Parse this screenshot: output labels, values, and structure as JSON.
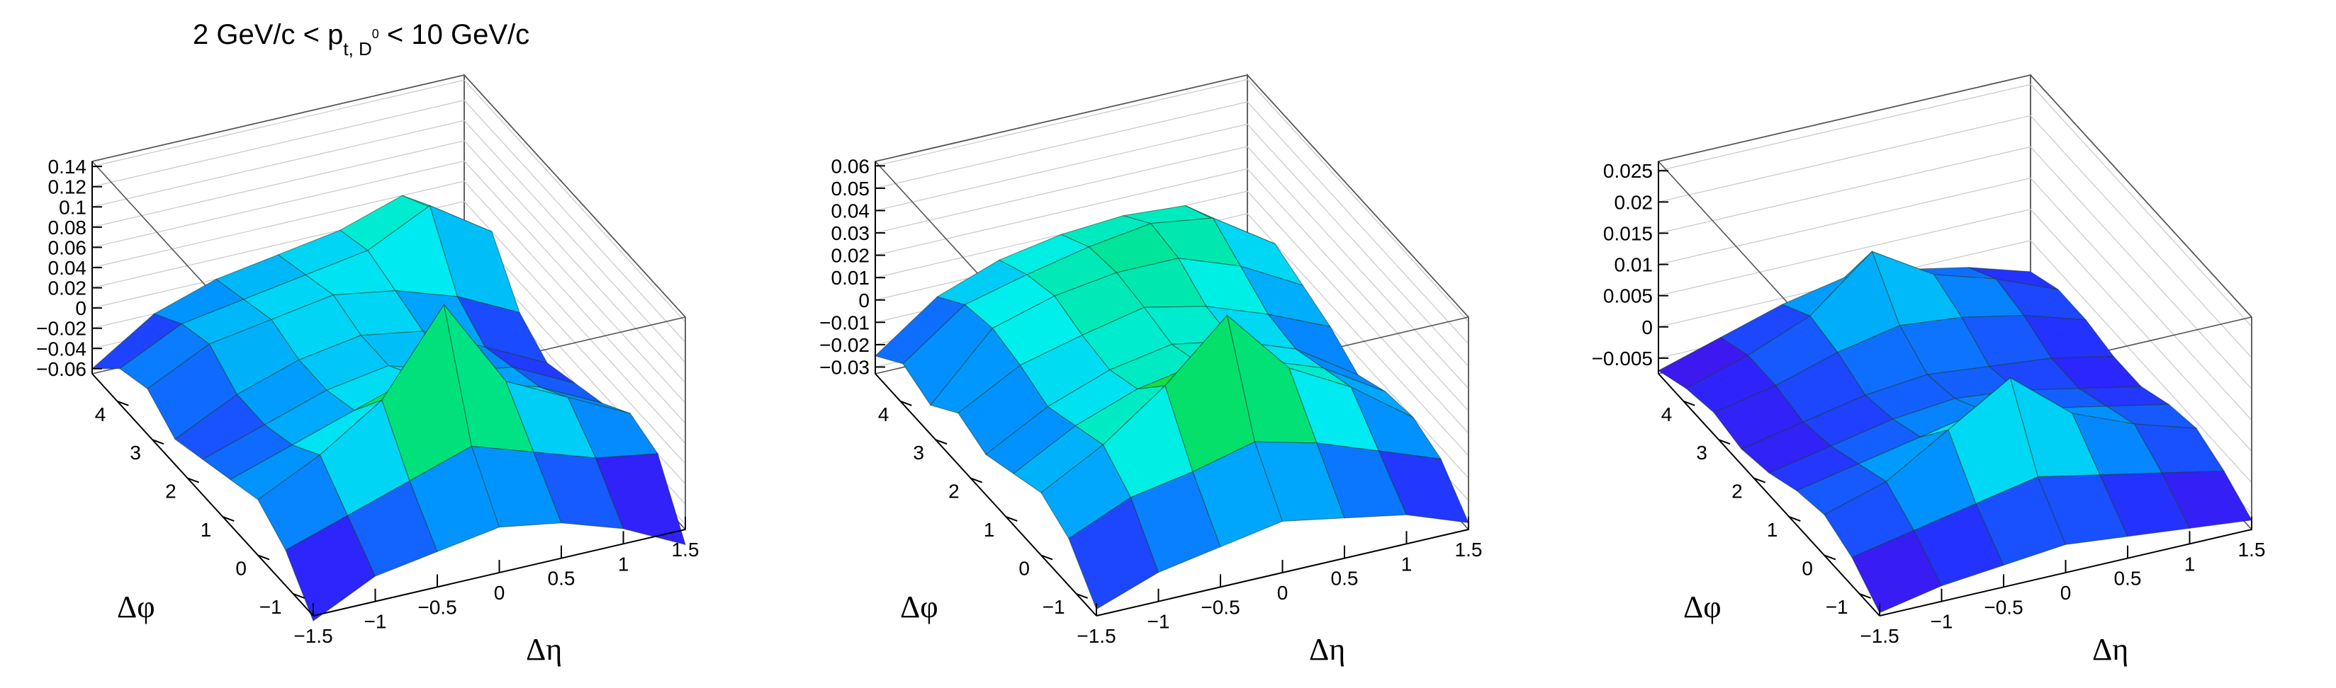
{
  "title": {
    "prefix": "2 GeV/c < p",
    "sub": "t, D",
    "sup": "0",
    "suffix": " < 10 GeV/c"
  },
  "chart_data": [
    {
      "type": "surface3d",
      "xlabel": "Δη",
      "ylabel": "Δφ",
      "x_ticks": [
        "−1.5",
        "−1",
        "−0.5",
        "0",
        "0.5",
        "1",
        "1.5"
      ],
      "x_tick_values": [
        -1.5,
        -1,
        -0.5,
        0,
        0.5,
        1,
        1.5
      ],
      "y_ticks": [
        "−1",
        "0",
        "1",
        "2",
        "3",
        "4"
      ],
      "y_tick_values": [
        -1,
        0,
        1,
        2,
        3,
        4
      ],
      "z_ticks": [
        "−0.06",
        "−0.04",
        "−0.02",
        "0",
        "0.02",
        "0.04",
        "0.06",
        "0.08",
        "0.1",
        "0.12",
        "0.14"
      ],
      "z_tick_values": [
        -0.06,
        -0.04,
        -0.02,
        0,
        0.02,
        0.04,
        0.06,
        0.08,
        0.1,
        0.12,
        0.14
      ],
      "zlim": [
        -0.065,
        0.145
      ],
      "eta_bins": [
        -1.5,
        -1,
        -0.5,
        0,
        0.5,
        1,
        1.5
      ],
      "phi_bins": [
        -1.571,
        -0.785,
        0,
        0.785,
        1.571,
        2.356,
        3.142,
        3.927,
        4.712
      ],
      "z": [
        [
          -0.07,
          -0.04,
          -0.03,
          -0.02,
          -0.03,
          -0.05,
          -0.08
        ],
        [
          -0.03,
          -0.01,
          0.01,
          0.03,
          0.01,
          -0.01,
          -0.02
        ],
        [
          -0.01,
          0.02,
          0.06,
          0.14,
          0.05,
          0.02,
          -0.01
        ],
        [
          -0.02,
          0.0,
          0.02,
          0.04,
          0.02,
          0.0,
          -0.03
        ],
        [
          -0.03,
          -0.01,
          0.01,
          0.02,
          0.0,
          -0.01,
          -0.04
        ],
        [
          -0.04,
          -0.01,
          0.01,
          0.02,
          0.01,
          -0.02,
          -0.05
        ],
        [
          -0.02,
          0.01,
          0.02,
          0.03,
          0.02,
          0.0,
          -0.03
        ],
        [
          -0.03,
          0.0,
          0.01,
          0.02,
          0.03,
          0.06,
          0.02
        ],
        [
          -0.06,
          -0.02,
          0.0,
          0.01,
          0.02,
          0.04,
          0.0
        ]
      ]
    },
    {
      "type": "surface3d",
      "xlabel": "Δη",
      "ylabel": "Δφ",
      "x_ticks": [
        "−1.5",
        "−1",
        "−0.5",
        "0",
        "0.5",
        "1",
        "1.5"
      ],
      "x_tick_values": [
        -1.5,
        -1,
        -0.5,
        0,
        0.5,
        1,
        1.5
      ],
      "y_ticks": [
        "−1",
        "0",
        "1",
        "2",
        "3",
        "4"
      ],
      "y_tick_values": [
        -1,
        0,
        1,
        2,
        3,
        4
      ],
      "z_ticks": [
        "−0.03",
        "−0.02",
        "−0.01",
        "0",
        "0.01",
        "0.02",
        "0.03",
        "0.04",
        "0.05",
        "0.06"
      ],
      "z_tick_values": [
        -0.03,
        -0.02,
        -0.01,
        0,
        0.01,
        0.02,
        0.03,
        0.04,
        0.05,
        0.06
      ],
      "zlim": [
        -0.033,
        0.062
      ],
      "eta_bins": [
        -1.5,
        -1,
        -0.5,
        0,
        0.5,
        1,
        1.5
      ],
      "phi_bins": [
        -1.571,
        -0.785,
        0,
        0.785,
        1.571,
        2.356,
        3.142,
        3.927,
        4.712
      ],
      "z": [
        [
          -0.03,
          -0.02,
          -0.015,
          -0.01,
          -0.015,
          -0.02,
          -0.03
        ],
        [
          -0.012,
          0.0,
          0.005,
          0.012,
          0.005,
          -0.005,
          -0.015
        ],
        [
          -0.005,
          0.01,
          0.03,
          0.055,
          0.025,
          0.01,
          -0.01
        ],
        [
          -0.01,
          0.005,
          0.015,
          0.02,
          0.015,
          0.005,
          -0.012
        ],
        [
          -0.015,
          0.0,
          0.01,
          0.015,
          0.01,
          0.0,
          -0.018
        ],
        [
          -0.01,
          0.005,
          0.012,
          0.018,
          0.012,
          0.002,
          -0.01
        ],
        [
          -0.02,
          0.008,
          0.016,
          0.02,
          0.02,
          0.01,
          -0.005
        ],
        [
          -0.015,
          0.005,
          0.012,
          0.018,
          0.022,
          0.018,
          0.0
        ],
        [
          -0.025,
          -0.005,
          0.005,
          0.01,
          0.012,
          0.01,
          -0.01
        ]
      ]
    },
    {
      "type": "surface3d",
      "xlabel": "Δη",
      "ylabel": "Δφ",
      "x_ticks": [
        "−1.5",
        "−1",
        "−0.5",
        "0",
        "0.5",
        "1",
        "1.5"
      ],
      "x_tick_values": [
        -1.5,
        -1,
        -0.5,
        0,
        0.5,
        1,
        1.5
      ],
      "y_ticks": [
        "−1",
        "0",
        "1",
        "2",
        "3",
        "4"
      ],
      "y_tick_values": [
        -1,
        0,
        1,
        2,
        3,
        4
      ],
      "z_ticks": [
        "−0.005",
        "0",
        "0.005",
        "0.01",
        "0.015",
        "0.02",
        "0.025"
      ],
      "z_tick_values": [
        -0.005,
        0,
        0.005,
        0.01,
        0.015,
        0.02,
        0.025
      ],
      "zlim": [
        -0.0075,
        0.0265
      ],
      "eta_bins": [
        -1.5,
        -1,
        -0.5,
        0,
        0.5,
        1,
        1.5
      ],
      "phi_bins": [
        -1.571,
        -0.785,
        0,
        0.785,
        1.571,
        2.356,
        3.142,
        3.927,
        4.712
      ],
      "z": [
        [
          -0.007,
          -0.005,
          -0.004,
          -0.003,
          -0.004,
          -0.005,
          -0.006
        ],
        [
          -0.003,
          -0.001,
          0.001,
          0.003,
          0.001,
          -0.001,
          -0.003
        ],
        [
          -0.001,
          0.002,
          0.008,
          0.014,
          0.006,
          0.002,
          -0.001
        ],
        [
          -0.002,
          0.0,
          0.002,
          0.004,
          0.002,
          0.0,
          -0.002
        ],
        [
          -0.004,
          -0.002,
          0.0,
          0.001,
          0.0,
          -0.002,
          -0.004
        ],
        [
          -0.005,
          -0.003,
          -0.001,
          0.0,
          -0.001,
          -0.002,
          -0.004
        ],
        [
          -0.004,
          -0.002,
          0.001,
          0.003,
          0.002,
          0.0,
          -0.003
        ],
        [
          -0.005,
          -0.002,
          0.002,
          0.01,
          0.004,
          0.001,
          -0.003
        ],
        [
          -0.007,
          -0.004,
          -0.001,
          0.001,
          0.0,
          -0.002,
          -0.005
        ]
      ]
    }
  ]
}
